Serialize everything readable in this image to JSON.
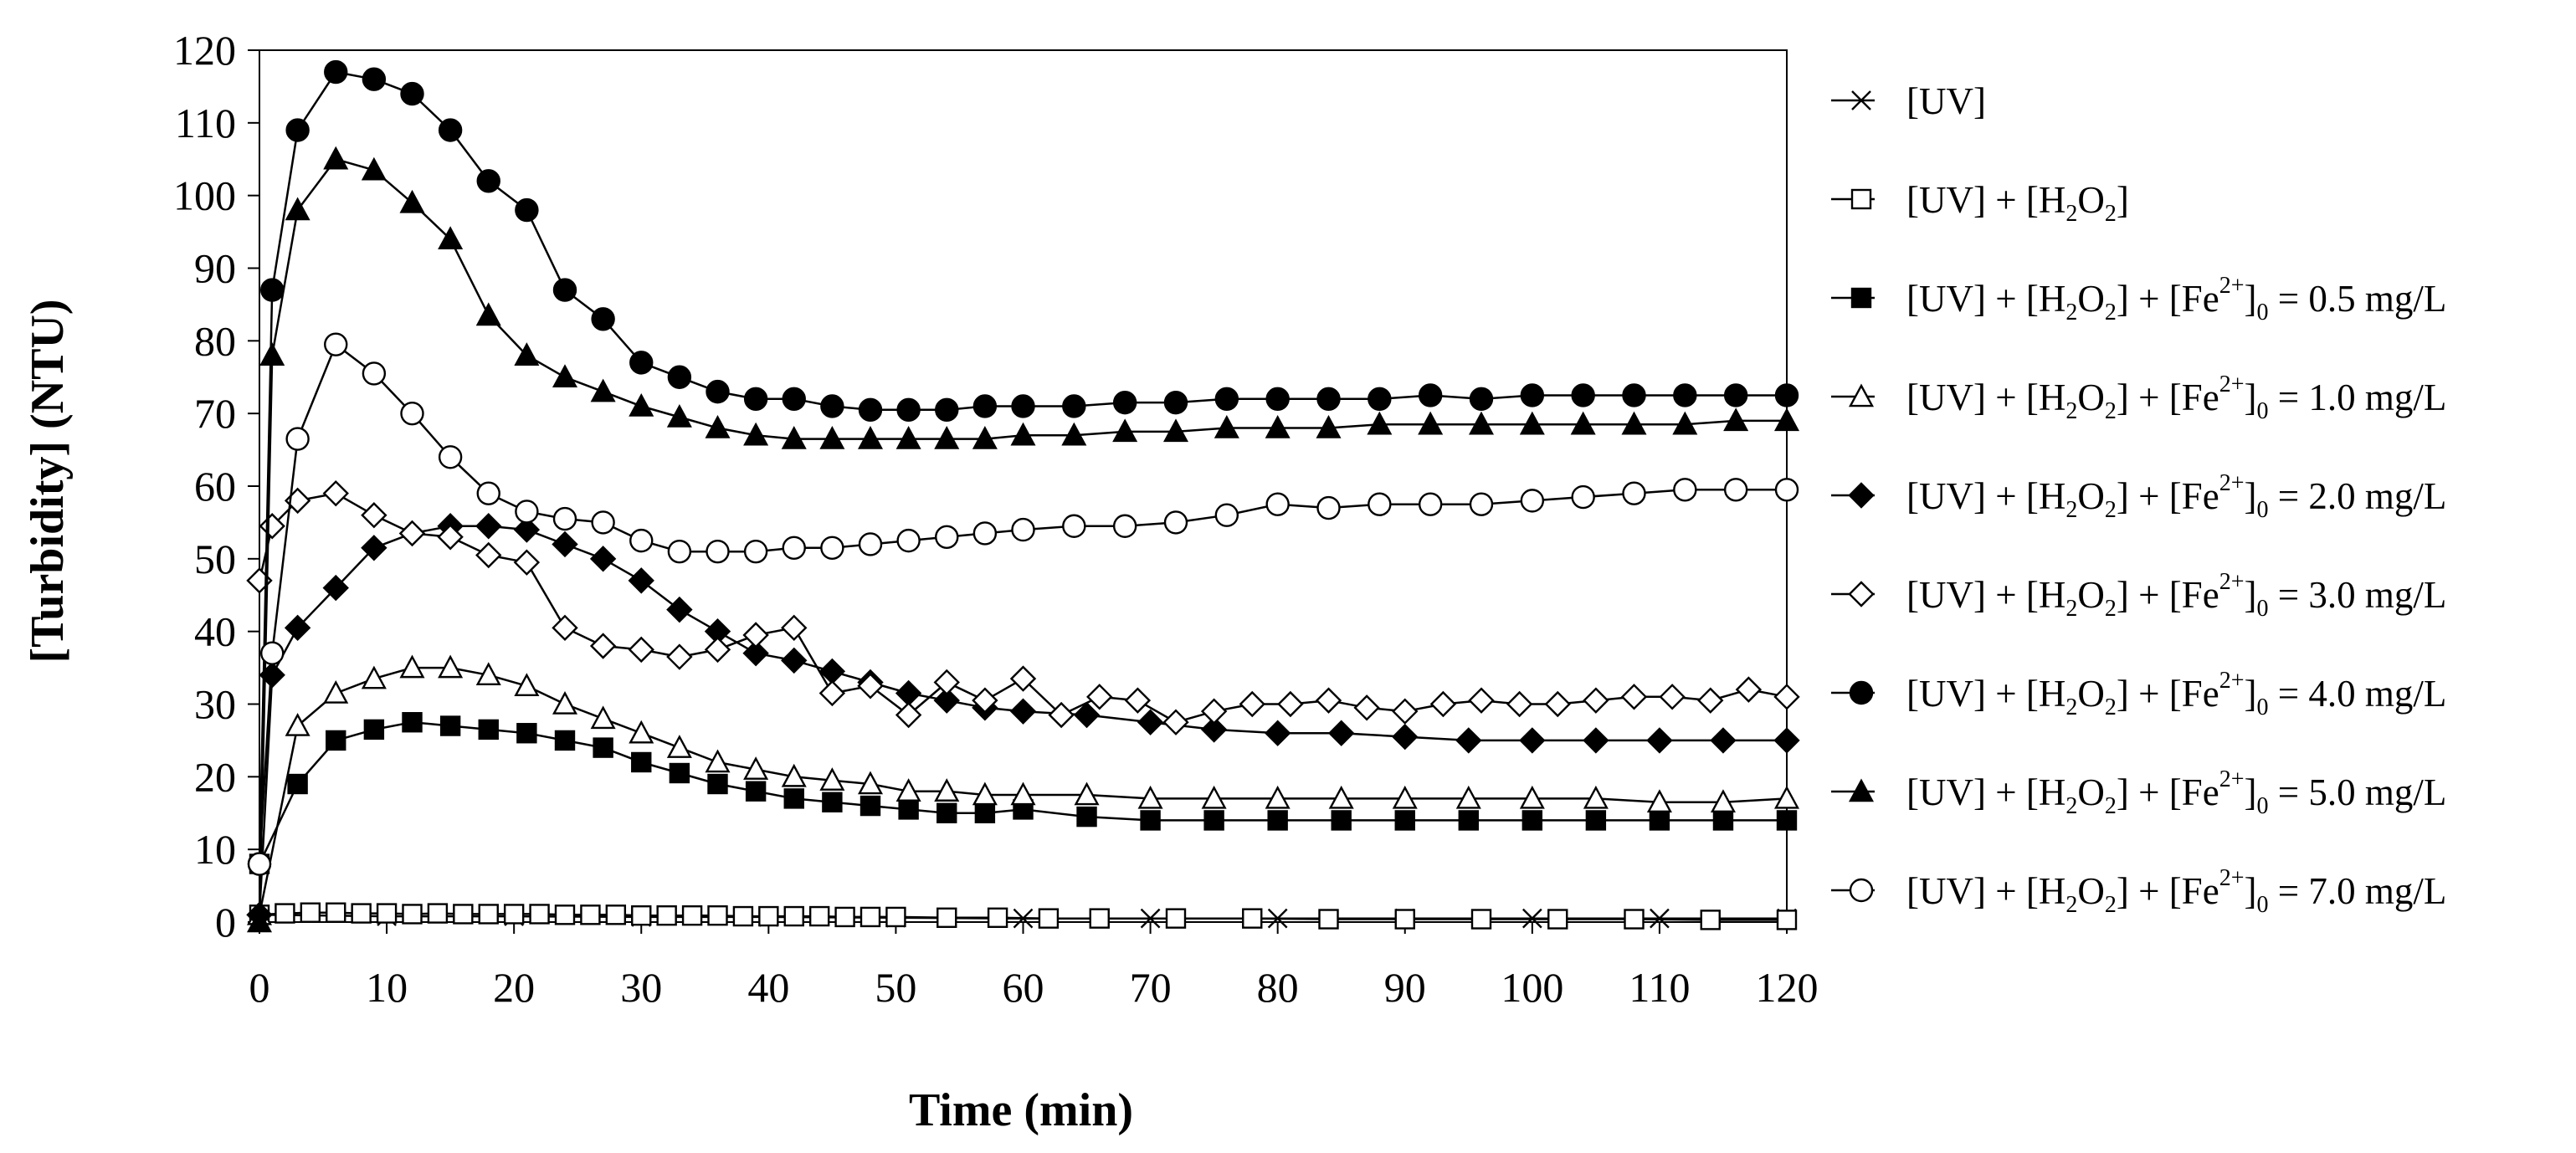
{
  "chart_data": {
    "type": "line",
    "title": "",
    "xlabel": "Time (min)",
    "ylabel": "[Turbidity] (NTU)",
    "xlim": [
      0,
      120
    ],
    "ylim": [
      0,
      120
    ],
    "xticks": [
      0,
      10,
      20,
      30,
      40,
      50,
      60,
      70,
      80,
      90,
      100,
      110,
      120
    ],
    "yticks": [
      0,
      10,
      20,
      30,
      40,
      50,
      60,
      70,
      80,
      90,
      100,
      110,
      120
    ],
    "grid": false,
    "legend_position": "right",
    "series": [
      {
        "name": "[UV]",
        "label_parts": [
          {
            "t": "[UV]"
          }
        ],
        "marker": "cross",
        "x": [
          0,
          10,
          20,
          30,
          40,
          50,
          60,
          70,
          80,
          90,
          100,
          110,
          120
        ],
        "y": [
          1.0,
          0.8,
          0.8,
          0.7,
          0.7,
          0.6,
          0.5,
          0.5,
          0.5,
          0.5,
          0.5,
          0.5,
          0.5
        ]
      },
      {
        "name": "[UV] + [H2O2]",
        "label_parts": [
          {
            "t": "[UV] + [H"
          },
          {
            "sub": "2"
          },
          {
            "t": "O"
          },
          {
            "sub": "2"
          },
          {
            "t": "]"
          }
        ],
        "marker": "square-open",
        "x": [
          0,
          2,
          4,
          6,
          8,
          10,
          12,
          14,
          16,
          18,
          20,
          22,
          24,
          26,
          28,
          30,
          32,
          34,
          36,
          38,
          40,
          42,
          44,
          46,
          48,
          50,
          54,
          58,
          62,
          66,
          72,
          78,
          84,
          90,
          96,
          102,
          108,
          114,
          120
        ],
        "y": [
          1.0,
          1.2,
          1.3,
          1.3,
          1.2,
          1.2,
          1.1,
          1.2,
          1.1,
          1.1,
          1.1,
          1.1,
          1.0,
          1.0,
          1.0,
          0.9,
          0.9,
          0.9,
          0.9,
          0.8,
          0.8,
          0.8,
          0.8,
          0.7,
          0.7,
          0.7,
          0.6,
          0.6,
          0.5,
          0.5,
          0.5,
          0.5,
          0.4,
          0.4,
          0.4,
          0.4,
          0.4,
          0.3,
          0.3
        ]
      },
      {
        "name": "[UV] + [H2O2] + [Fe2+]0 = 0.5 mg/L",
        "label_parts": [
          {
            "t": "[UV] + [H"
          },
          {
            "sub": "2"
          },
          {
            "t": "O"
          },
          {
            "sub": "2"
          },
          {
            "t": "] + [Fe"
          },
          {
            "sup": "2+"
          },
          {
            "t": "]"
          },
          {
            "sub": "0"
          },
          {
            "t": " = 0.5 mg/L"
          }
        ],
        "marker": "square-filled",
        "x": [
          0,
          3,
          6,
          9,
          12,
          15,
          18,
          21,
          24,
          27,
          30,
          33,
          36,
          39,
          42,
          45,
          48,
          51,
          54,
          57,
          60,
          65,
          70,
          75,
          80,
          85,
          90,
          95,
          100,
          105,
          110,
          115,
          120
        ],
        "y": [
          8,
          19,
          25,
          26.5,
          27.5,
          27,
          26.5,
          26,
          25,
          24,
          22,
          20.5,
          19,
          18,
          17,
          16.5,
          16,
          15.5,
          15,
          15,
          15.5,
          14.5,
          14,
          14,
          14,
          14,
          14,
          14,
          14,
          14,
          14,
          14,
          14
        ]
      },
      {
        "name": "[UV] + [H2O2] + [Fe2+]0 = 1.0 mg/L",
        "label_parts": [
          {
            "t": "[UV] + [H"
          },
          {
            "sub": "2"
          },
          {
            "t": "O"
          },
          {
            "sub": "2"
          },
          {
            "t": "] + [Fe"
          },
          {
            "sup": "2+"
          },
          {
            "t": "]"
          },
          {
            "sub": "0"
          },
          {
            "t": " = 1.0 mg/L"
          }
        ],
        "marker": "triangle-open",
        "x": [
          0,
          3,
          6,
          9,
          12,
          15,
          18,
          21,
          24,
          27,
          30,
          33,
          36,
          39,
          42,
          45,
          48,
          51,
          54,
          57,
          60,
          65,
          70,
          75,
          80,
          85,
          90,
          95,
          100,
          105,
          110,
          115,
          120
        ],
        "y": [
          1,
          27,
          31.5,
          33.5,
          35,
          35,
          34,
          32.5,
          30,
          28,
          26,
          24,
          22,
          21,
          20,
          19.5,
          19,
          18,
          18,
          17.5,
          17.5,
          17.5,
          17,
          17,
          17,
          17,
          17,
          17,
          17,
          17,
          16.5,
          16.5,
          17
        ]
      },
      {
        "name": "[UV] + [H2O2] + [Fe2+]0 = 2.0 mg/L",
        "label_parts": [
          {
            "t": "[UV] + [H"
          },
          {
            "sub": "2"
          },
          {
            "t": "O"
          },
          {
            "sub": "2"
          },
          {
            "t": "] + [Fe"
          },
          {
            "sup": "2+"
          },
          {
            "t": "]"
          },
          {
            "sub": "0"
          },
          {
            "t": " = 2.0 mg/L"
          }
        ],
        "marker": "diamond-filled",
        "x": [
          0,
          1,
          3,
          6,
          9,
          12,
          15,
          18,
          21,
          24,
          27,
          30,
          33,
          36,
          39,
          42,
          45,
          48,
          51,
          54,
          57,
          60,
          65,
          70,
          75,
          80,
          85,
          90,
          95,
          100,
          105,
          110,
          115,
          120
        ],
        "y": [
          1,
          34,
          40.5,
          46,
          51.5,
          53.5,
          54.5,
          54.5,
          54,
          52,
          50,
          47,
          43,
          40,
          37,
          36,
          34.5,
          33,
          31.5,
          30.5,
          29.5,
          29,
          28.5,
          27.5,
          26.5,
          26,
          26,
          25.5,
          25,
          25,
          25,
          25,
          25,
          25
        ]
      },
      {
        "name": "[UV] + [H2O2] + [Fe2+]0 = 3.0 mg/L",
        "label_parts": [
          {
            "t": "[UV] + [H"
          },
          {
            "sub": "2"
          },
          {
            "t": "O"
          },
          {
            "sub": "2"
          },
          {
            "t": "] + [Fe"
          },
          {
            "sup": "2+"
          },
          {
            "t": "]"
          },
          {
            "sub": "0"
          },
          {
            "t": " = 3.0 mg/L"
          }
        ],
        "marker": "diamond-open",
        "x": [
          0,
          1,
          3,
          6,
          9,
          12,
          15,
          18,
          21,
          24,
          27,
          30,
          33,
          36,
          39,
          42,
          45,
          48,
          51,
          54,
          57,
          60,
          63,
          66,
          69,
          72,
          75,
          78,
          81,
          84,
          87,
          90,
          93,
          96,
          99,
          102,
          105,
          108,
          111,
          114,
          117,
          120
        ],
        "y": [
          47,
          54.5,
          58,
          59,
          56,
          53.5,
          53,
          50.5,
          49.5,
          40.5,
          38,
          37.5,
          36.5,
          37.5,
          39.5,
          40.5,
          31.5,
          32.5,
          28.5,
          33,
          30.5,
          33.5,
          28.5,
          31,
          30.5,
          27.5,
          29,
          30,
          30,
          30.5,
          29.5,
          29,
          30,
          30.5,
          30,
          30,
          30.5,
          31,
          31,
          30.5,
          32,
          31
        ]
      },
      {
        "name": "[UV] + [H2O2] + [Fe2+]0 = 4.0 mg/L",
        "label_parts": [
          {
            "t": "[UV] + [H"
          },
          {
            "sub": "2"
          },
          {
            "t": "O"
          },
          {
            "sub": "2"
          },
          {
            "t": "] + [Fe"
          },
          {
            "sup": "2+"
          },
          {
            "t": "]"
          },
          {
            "sub": "0"
          },
          {
            "t": " = 4.0 mg/L"
          }
        ],
        "marker": "circle-filled",
        "x": [
          0,
          1,
          3,
          6,
          9,
          12,
          15,
          18,
          21,
          24,
          27,
          30,
          33,
          36,
          39,
          42,
          45,
          48,
          51,
          54,
          57,
          60,
          64,
          68,
          72,
          76,
          80,
          84,
          88,
          92,
          96,
          100,
          104,
          108,
          112,
          116,
          120
        ],
        "y": [
          8,
          87,
          109,
          117,
          116,
          114,
          109,
          102,
          98,
          87,
          83,
          77,
          75,
          73,
          72,
          72,
          71,
          70.5,
          70.5,
          70.5,
          71,
          71,
          71,
          71.5,
          71.5,
          72,
          72,
          72,
          72,
          72.5,
          72,
          72.5,
          72.5,
          72.5,
          72.5,
          72.5,
          72.5
        ]
      },
      {
        "name": "[UV] + [H2O2] + [Fe2+]0 = 5.0 mg/L",
        "label_parts": [
          {
            "t": "[UV] + [H"
          },
          {
            "sub": "2"
          },
          {
            "t": "O"
          },
          {
            "sub": "2"
          },
          {
            "t": "] + [Fe"
          },
          {
            "sup": "2+"
          },
          {
            "t": "]"
          },
          {
            "sub": "0"
          },
          {
            "t": " = 5.0 mg/L"
          }
        ],
        "marker": "triangle-filled",
        "x": [
          0,
          1,
          3,
          6,
          9,
          12,
          15,
          18,
          21,
          24,
          27,
          30,
          33,
          36,
          39,
          42,
          45,
          48,
          51,
          54,
          57,
          60,
          64,
          68,
          72,
          76,
          80,
          84,
          88,
          92,
          96,
          100,
          104,
          108,
          112,
          116,
          120
        ],
        "y": [
          0,
          78,
          98,
          105,
          103.5,
          99,
          94,
          83.5,
          78,
          75,
          73,
          71,
          69.5,
          68,
          67,
          66.5,
          66.5,
          66.5,
          66.5,
          66.5,
          66.5,
          67,
          67,
          67.5,
          67.5,
          68,
          68,
          68,
          68.5,
          68.5,
          68.5,
          68.5,
          68.5,
          68.5,
          68.5,
          69,
          69
        ]
      },
      {
        "name": "[UV] + [H2O2] + [Fe2+]0 = 7.0 mg/L",
        "label_parts": [
          {
            "t": "[UV] + [H"
          },
          {
            "sub": "2"
          },
          {
            "t": "O"
          },
          {
            "sub": "2"
          },
          {
            "t": "] + [Fe"
          },
          {
            "sup": "2+"
          },
          {
            "t": "]"
          },
          {
            "sub": "0"
          },
          {
            "t": " = 7.0 mg/L"
          }
        ],
        "marker": "circle-open",
        "x": [
          0,
          1,
          3,
          6,
          9,
          12,
          15,
          18,
          21,
          24,
          27,
          30,
          33,
          36,
          39,
          42,
          45,
          48,
          51,
          54,
          57,
          60,
          64,
          68,
          72,
          76,
          80,
          84,
          88,
          92,
          96,
          100,
          104,
          108,
          112,
          116,
          120
        ],
        "y": [
          8,
          37,
          66.5,
          79.5,
          75.5,
          70,
          64,
          59,
          56.5,
          55.5,
          55,
          52.5,
          51,
          51,
          51,
          51.5,
          51.5,
          52,
          52.5,
          53,
          53.5,
          54,
          54.5,
          54.5,
          55,
          56,
          57.5,
          57,
          57.5,
          57.5,
          57.5,
          58,
          58.5,
          59,
          59.5,
          59.5,
          59.5
        ]
      }
    ]
  }
}
